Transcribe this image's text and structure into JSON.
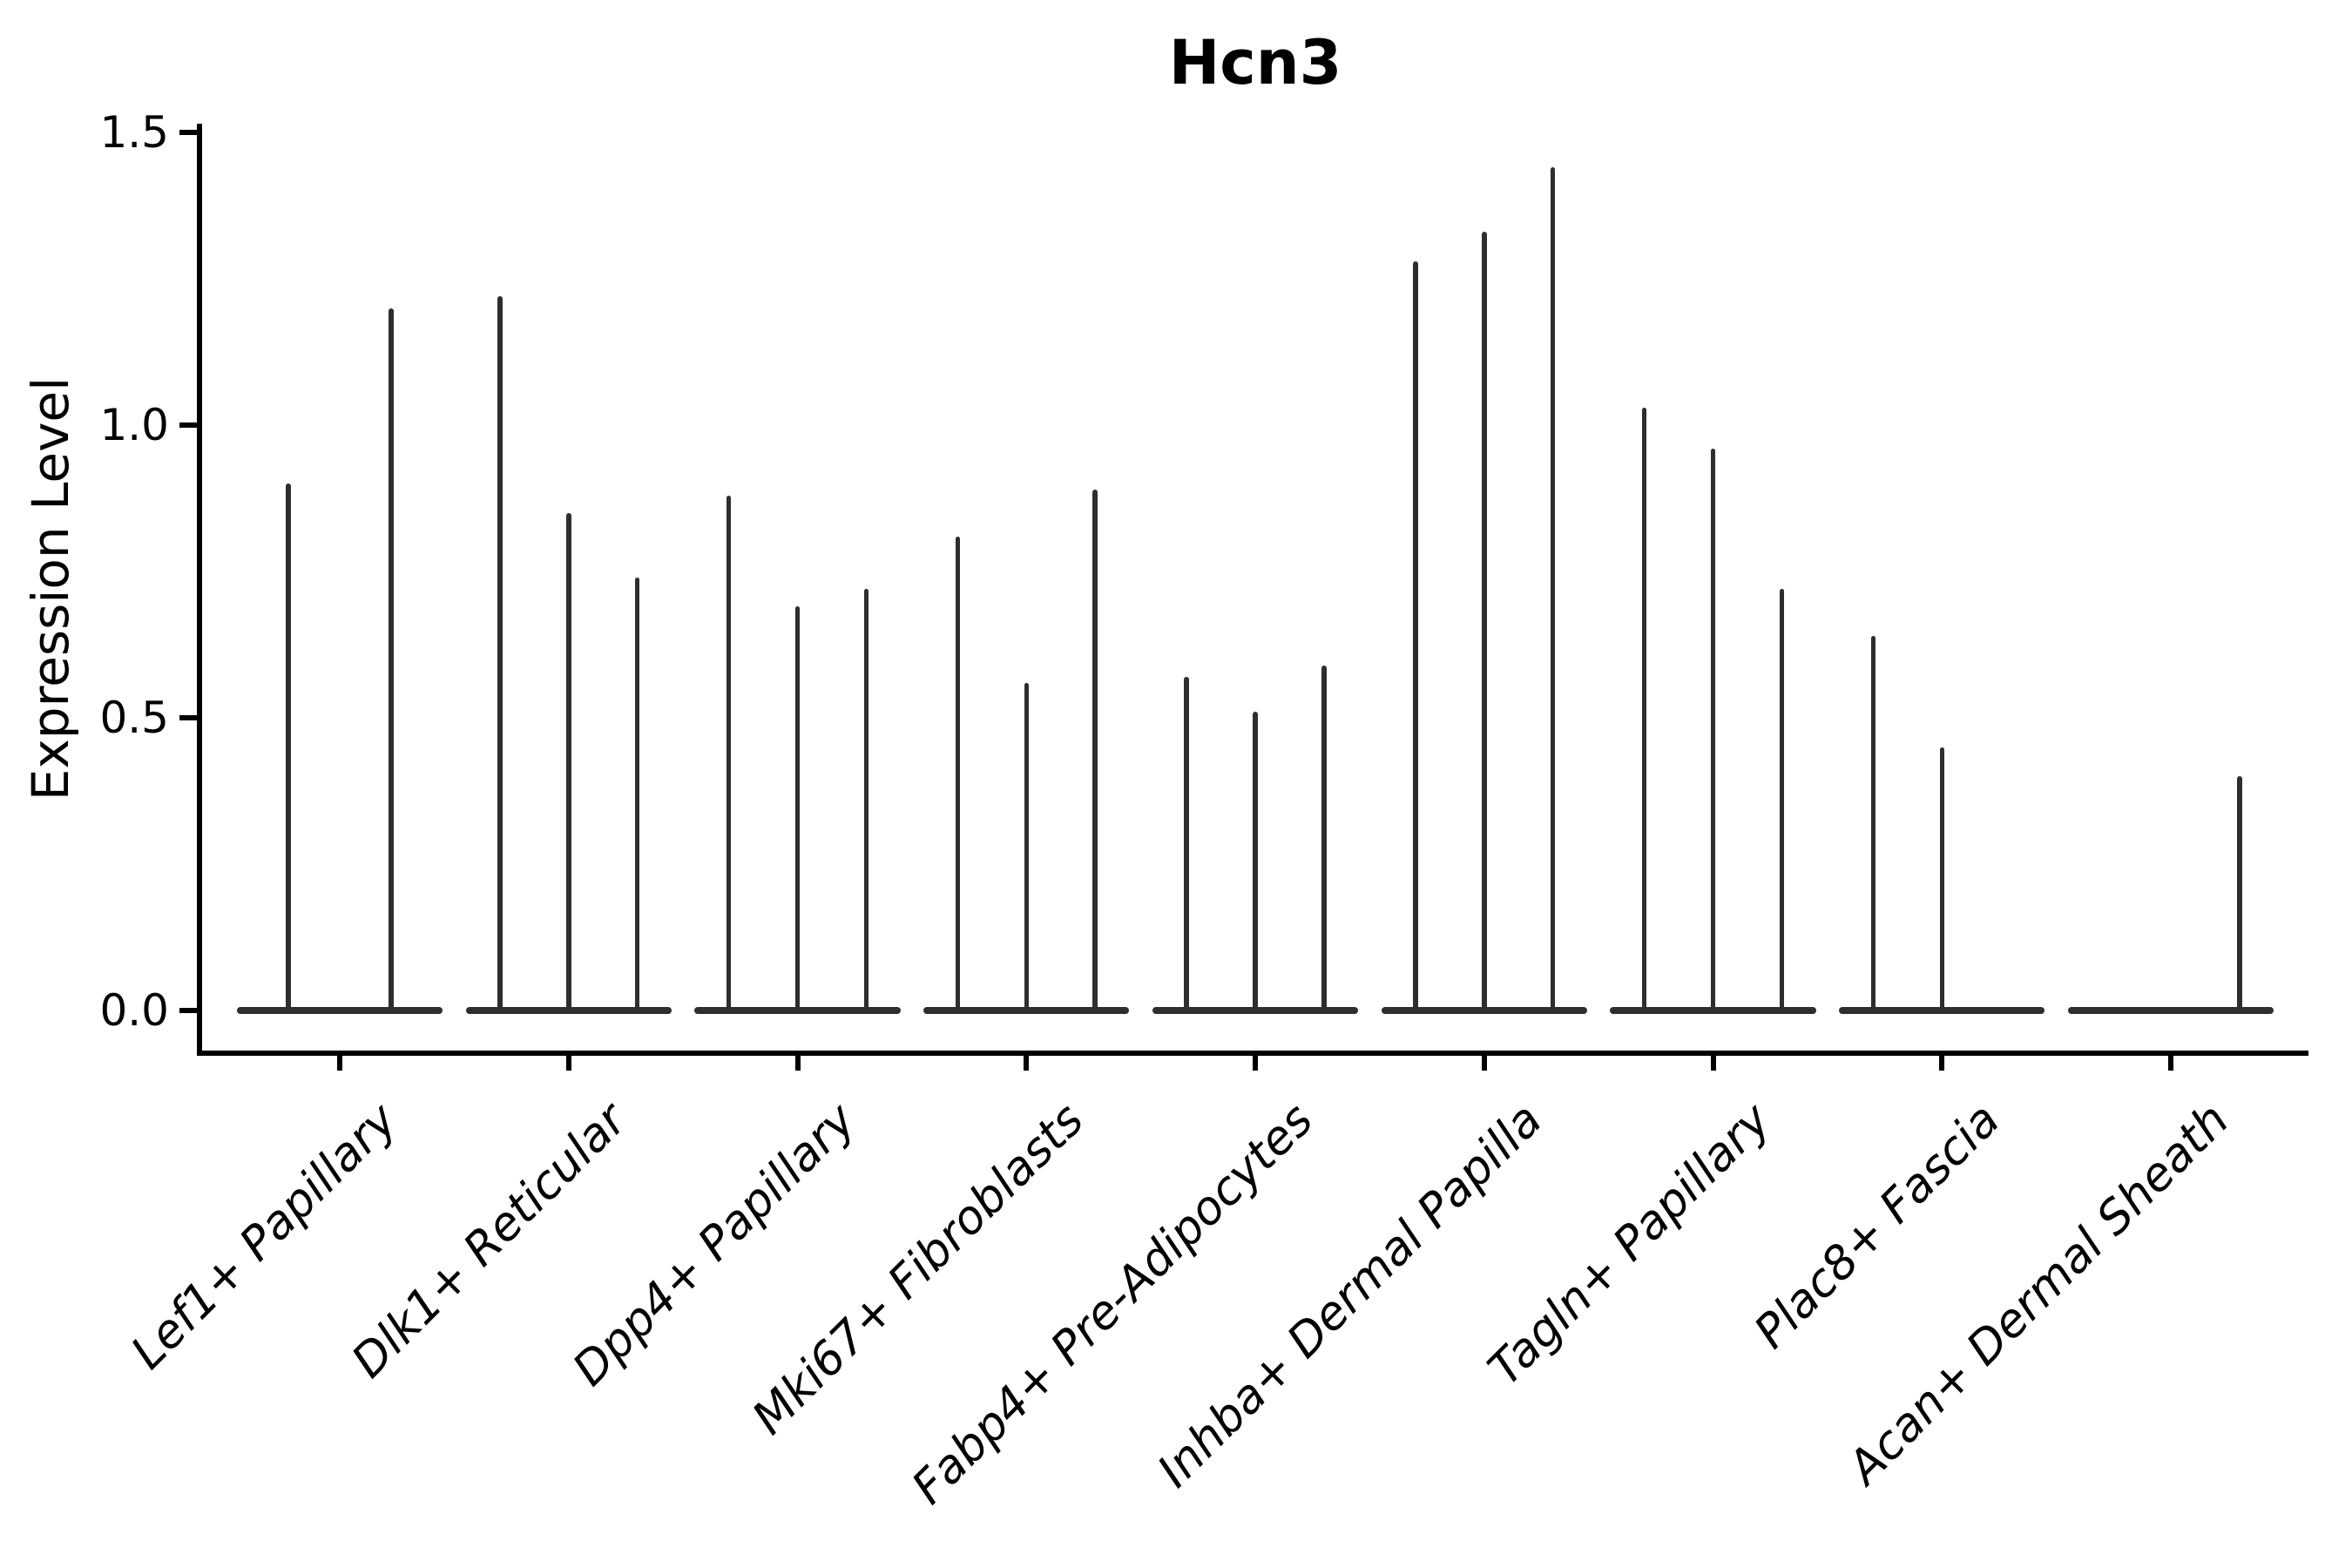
{
  "chart_data": {
    "type": "violin",
    "title": "Hcn3",
    "xlabel": "",
    "ylabel": "Expression Level",
    "ylim": [
      0,
      1.5
    ],
    "yticks": [
      0.0,
      0.5,
      1.0,
      1.5
    ],
    "grid": false,
    "legend": "none",
    "x_label_rotation": 45,
    "x_label_style": "italic",
    "violin_color": "#2e2e2e",
    "axis_color": "#000000",
    "description": "Split violin plot; each cell-type group contains 2-3 dodged violins collapsed flat at expression 0, each with a thin tail spike reaching its maximum expression value.",
    "categories": [
      "Lef1+ Papillary",
      "Dlk1+ Reticular",
      "Dpp4+ Papillary",
      "Mki67+ Fibroblasts",
      "Fabp4+ Pre-Adipocytes",
      "Inhba+ Dermal Papilla",
      "Tagln+ Papillary",
      "Plac8+ Fascia",
      "Acan+ Dermal Sheath"
    ],
    "groups": [
      {
        "label": "Lef1+ Papillary",
        "spike_maxima": [
          0.9,
          1.2
        ]
      },
      {
        "label": "Dlk1+ Reticular",
        "spike_maxima": [
          1.22,
          0.85,
          0.74
        ]
      },
      {
        "label": "Dpp4+ Papillary",
        "spike_maxima": [
          0.88,
          0.69,
          0.72
        ]
      },
      {
        "label": "Mki67+ Fibroblasts",
        "spike_maxima": [
          0.81,
          0.56,
          0.89
        ]
      },
      {
        "label": "Fabp4+ Pre-Adipocytes",
        "spike_maxima": [
          0.57,
          0.51,
          0.59
        ]
      },
      {
        "label": "Inhba+ Dermal Papilla",
        "spike_maxima": [
          1.28,
          1.33,
          1.44
        ]
      },
      {
        "label": "Tagln+ Papillary",
        "spike_maxima": [
          1.03,
          0.96,
          0.72
        ]
      },
      {
        "label": "Plac8+ Fascia",
        "spike_maxima": [
          0.64,
          0.45,
          0
        ]
      },
      {
        "label": "Acan+ Dermal Sheath",
        "spike_maxima": [
          0,
          0,
          0.4
        ]
      }
    ]
  }
}
